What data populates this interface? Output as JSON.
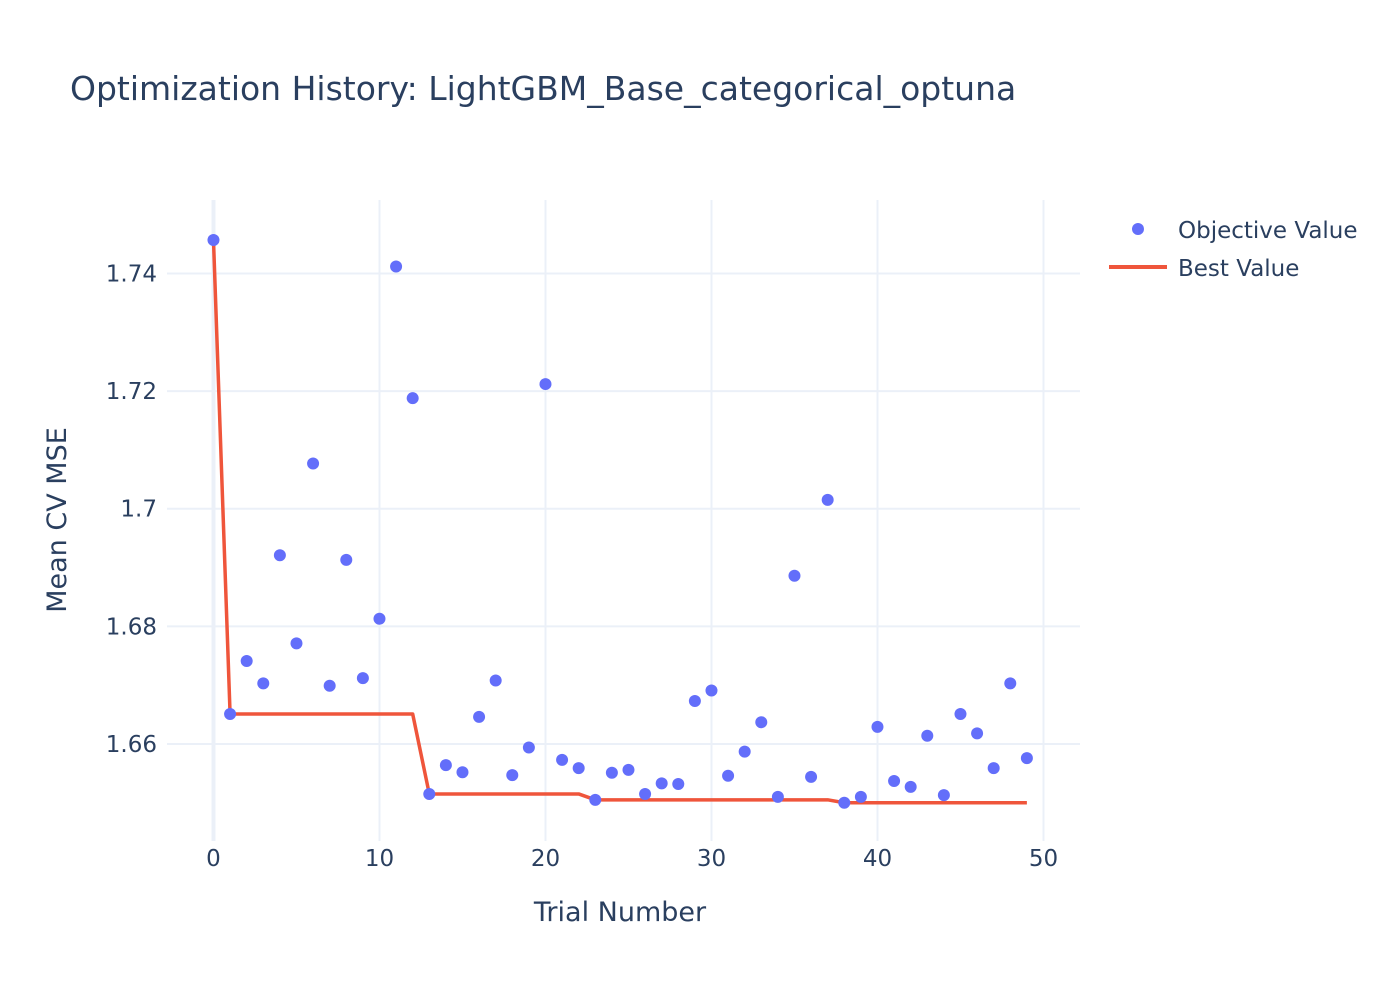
{
  "chart_data": {
    "type": "scatter",
    "title": "Optimization History: LightGBM_Base_categorical_optuna",
    "xlabel": "Trial Number",
    "ylabel": "Mean CV MSE",
    "xlim": [
      -2.8,
      52.2
    ],
    "ylim": [
      1.6435,
      1.7525
    ],
    "xticks": [
      0,
      10,
      20,
      30,
      40,
      50
    ],
    "yticks": [
      1.66,
      1.68,
      1.7,
      1.72,
      1.74
    ],
    "ytick_labels": [
      "1.66",
      "1.68",
      "1.7",
      "1.72",
      "1.74"
    ],
    "grid": true,
    "legend_position": "top-right",
    "series": [
      {
        "name": "Objective Value",
        "type": "scatter",
        "color": "#636efa",
        "x": [
          0,
          1,
          2,
          3,
          4,
          5,
          6,
          7,
          8,
          9,
          10,
          11,
          12,
          13,
          14,
          15,
          16,
          17,
          18,
          19,
          20,
          21,
          22,
          23,
          24,
          25,
          26,
          27,
          28,
          29,
          30,
          31,
          32,
          33,
          34,
          35,
          36,
          37,
          38,
          39,
          40,
          41,
          42,
          43,
          44,
          45,
          46,
          47,
          48,
          49
        ],
        "y": [
          1.7457,
          1.6651,
          1.6741,
          1.6703,
          1.6921,
          1.6771,
          1.7077,
          1.6699,
          1.6913,
          1.6712,
          1.6813,
          1.7412,
          1.7188,
          1.6515,
          1.6564,
          1.6552,
          1.6646,
          1.6708,
          1.6547,
          1.6594,
          1.7212,
          1.6573,
          1.6559,
          1.6505,
          1.6551,
          1.6556,
          1.6515,
          1.6533,
          1.6532,
          1.6673,
          1.6691,
          1.6546,
          1.6587,
          1.6637,
          1.651,
          1.6886,
          1.6544,
          1.7015,
          1.65,
          1.651,
          1.6629,
          1.6537,
          1.6527,
          1.6614,
          1.6513,
          1.6651,
          1.6618,
          1.6559,
          1.6703,
          1.6576
        ]
      },
      {
        "name": "Best Value",
        "type": "line",
        "color": "#ef553b",
        "x": [
          0,
          1,
          2,
          3,
          4,
          5,
          6,
          7,
          8,
          9,
          10,
          11,
          12,
          13,
          14,
          15,
          16,
          17,
          18,
          19,
          20,
          21,
          22,
          23,
          24,
          25,
          26,
          27,
          28,
          29,
          30,
          31,
          32,
          33,
          34,
          35,
          36,
          37,
          38,
          39,
          40,
          41,
          42,
          43,
          44,
          45,
          46,
          47,
          48,
          49
        ],
        "y": [
          1.7457,
          1.6651,
          1.6651,
          1.6651,
          1.6651,
          1.6651,
          1.6651,
          1.6651,
          1.6651,
          1.6651,
          1.6651,
          1.6651,
          1.6651,
          1.6515,
          1.6515,
          1.6515,
          1.6515,
          1.6515,
          1.6515,
          1.6515,
          1.6515,
          1.6515,
          1.6515,
          1.6505,
          1.6505,
          1.6505,
          1.6505,
          1.6505,
          1.6505,
          1.6505,
          1.6505,
          1.6505,
          1.6505,
          1.6505,
          1.6505,
          1.6505,
          1.6505,
          1.6505,
          1.65,
          1.65,
          1.65,
          1.65,
          1.65,
          1.65,
          1.65,
          1.65,
          1.65,
          1.65,
          1.65,
          1.65
        ]
      }
    ]
  }
}
